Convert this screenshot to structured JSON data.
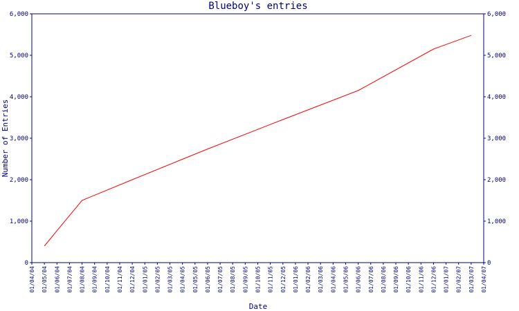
{
  "chart_data": {
    "type": "line",
    "title": "Blueboy's entries",
    "xlabel": "Date",
    "ylabel": "Number of Entries",
    "ylim": [
      0,
      6000
    ],
    "y_ticks": [
      {
        "value": 0,
        "label": "0"
      },
      {
        "value": 1000,
        "label": "1,000"
      },
      {
        "value": 2000,
        "label": "2,000"
      },
      {
        "value": 3000,
        "label": "3,000"
      },
      {
        "value": 4000,
        "label": "4,000"
      },
      {
        "value": 5000,
        "label": "5,000"
      },
      {
        "value": 6000,
        "label": "6,000"
      }
    ],
    "categories": [
      "01/04/04",
      "01/05/04",
      "01/06/04",
      "01/07/04",
      "01/08/04",
      "01/09/04",
      "01/10/04",
      "01/11/04",
      "01/12/04",
      "01/01/05",
      "01/02/05",
      "01/03/05",
      "01/04/05",
      "01/05/05",
      "01/06/05",
      "01/07/05",
      "01/08/05",
      "01/09/05",
      "01/10/05",
      "01/11/05",
      "01/12/05",
      "01/01/06",
      "01/02/06",
      "01/03/06",
      "01/04/06",
      "01/05/06",
      "01/06/06",
      "01/07/06",
      "01/08/06",
      "01/09/06",
      "01/10/06",
      "01/11/06",
      "01/12/06",
      "01/01/07",
      "01/02/07",
      "01/03/07",
      "01/04/07"
    ],
    "series": [
      {
        "color": "#ff0000",
        "points": [
          {
            "x": "01/05/04",
            "y": 400
          },
          {
            "x": "01/06/04",
            "y": 770
          },
          {
            "x": "01/08/04",
            "y": 1500
          },
          {
            "x": "01/12/04",
            "y": 2000
          },
          {
            "x": "01/06/05",
            "y": 2740
          },
          {
            "x": "01/12/05",
            "y": 3450
          },
          {
            "x": "01/06/06",
            "y": 4150
          },
          {
            "x": "01/12/06",
            "y": 5150
          },
          {
            "x": "01/03/07",
            "y": 5480
          }
        ]
      }
    ],
    "grid": false,
    "legend": "none",
    "colors": {
      "axis": "#000080",
      "text": "#000080",
      "series": "#ff0000",
      "background": "#ffffff"
    }
  }
}
